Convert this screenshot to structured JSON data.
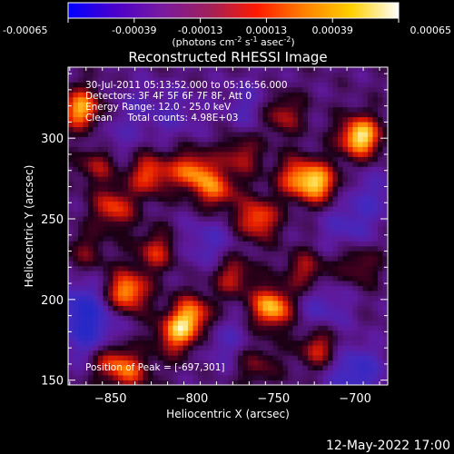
{
  "colorbar": {
    "ticks": [
      "-0.00065",
      "-0.00039",
      "-0.00013",
      "0.00013",
      "0.00039",
      "0.00065"
    ],
    "tick_values": [
      -0.00065,
      -0.00039,
      -0.00013,
      0.00013,
      0.00039,
      0.00065
    ],
    "units_main": "(photons cm",
    "units_exp1": "-2",
    "units_mid": " s",
    "units_exp2": "-1",
    "units_end": " asec",
    "units_exp3": "-2",
    "units_close": ")",
    "colors": [
      "#0000ff",
      "#4b00cc",
      "#7a1aa0",
      "#a0205a",
      "#ff1a00",
      "#ff8000",
      "#ffd000",
      "#ffffff"
    ]
  },
  "chart_data": {
    "type": "heatmap",
    "title": "Reconstructed RHESSI Image",
    "xlabel": "Heliocentric X (arcsec)",
    "ylabel": "Heliocentric Y (arcsec)",
    "xlim": [
      -876,
      -680
    ],
    "ylim": [
      147,
      344
    ],
    "x_ticks": [
      -850,
      -800,
      -750,
      -700
    ],
    "x_tick_labels": [
      "−850",
      "−800",
      "−750",
      "−700"
    ],
    "y_ticks": [
      150,
      200,
      250,
      300
    ],
    "y_tick_labels": [
      "150",
      "200",
      "250",
      "300"
    ],
    "info_lines": [
      "30-Jul-2011 05:13:52.000 to 05:16:56.000",
      "Detectors: 3F 4F 5F 6F 7F 8F, Att 0",
      "Energy Range: 12.0 - 25.0 keV",
      "Clean     Total counts: 4.98E+03"
    ],
    "peak_label": "Position of Peak = [-697,301]",
    "peak": [
      -697,
      301
    ],
    "blobs": [
      {
        "x": -697,
        "y": 301,
        "v": 1.0
      },
      {
        "x": -868,
        "y": 318,
        "v": 0.85
      },
      {
        "x": -858,
        "y": 285,
        "v": 0.55
      },
      {
        "x": -848,
        "y": 257,
        "v": 0.6
      },
      {
        "x": -826,
        "y": 278,
        "v": 0.65
      },
      {
        "x": -800,
        "y": 280,
        "v": 0.7
      },
      {
        "x": -785,
        "y": 268,
        "v": 0.6
      },
      {
        "x": -760,
        "y": 250,
        "v": 0.7
      },
      {
        "x": -722,
        "y": 272,
        "v": 0.75
      },
      {
        "x": -736,
        "y": 276,
        "v": 0.6
      },
      {
        "x": -770,
        "y": 290,
        "v": 0.45
      },
      {
        "x": -745,
        "y": 315,
        "v": 0.5
      },
      {
        "x": -840,
        "y": 205,
        "v": 0.85
      },
      {
        "x": -822,
        "y": 230,
        "v": 0.5
      },
      {
        "x": -800,
        "y": 190,
        "v": 0.75
      },
      {
        "x": -810,
        "y": 178,
        "v": 0.65
      },
      {
        "x": -775,
        "y": 215,
        "v": 0.5
      },
      {
        "x": -751,
        "y": 195,
        "v": 0.9
      },
      {
        "x": -730,
        "y": 218,
        "v": 0.45
      },
      {
        "x": -722,
        "y": 170,
        "v": 0.55
      },
      {
        "x": -698,
        "y": 222,
        "v": 0.4
      },
      {
        "x": -851,
        "y": 163,
        "v": 0.6
      },
      {
        "x": -838,
        "y": 155,
        "v": 0.5
      },
      {
        "x": -760,
        "y": 160,
        "v": 0.35
      },
      {
        "x": -865,
        "y": 230,
        "v": 0.3
      },
      {
        "x": -852,
        "y": 295,
        "v": -0.3
      },
      {
        "x": -868,
        "y": 195,
        "v": -0.6
      },
      {
        "x": -860,
        "y": 175,
        "v": -0.5
      },
      {
        "x": -700,
        "y": 155,
        "v": -0.6
      },
      {
        "x": -705,
        "y": 245,
        "v": -0.35
      },
      {
        "x": -790,
        "y": 235,
        "v": -0.35
      },
      {
        "x": -765,
        "y": 320,
        "v": -0.3
      },
      {
        "x": -810,
        "y": 315,
        "v": -0.25
      },
      {
        "x": -720,
        "y": 195,
        "v": -0.35
      },
      {
        "x": -780,
        "y": 175,
        "v": -0.3
      },
      {
        "x": -835,
        "y": 320,
        "v": -0.2
      },
      {
        "x": -690,
        "y": 265,
        "v": -0.3
      }
    ]
  },
  "footer": {
    "timestamp": "12-May-2022 17:00"
  }
}
